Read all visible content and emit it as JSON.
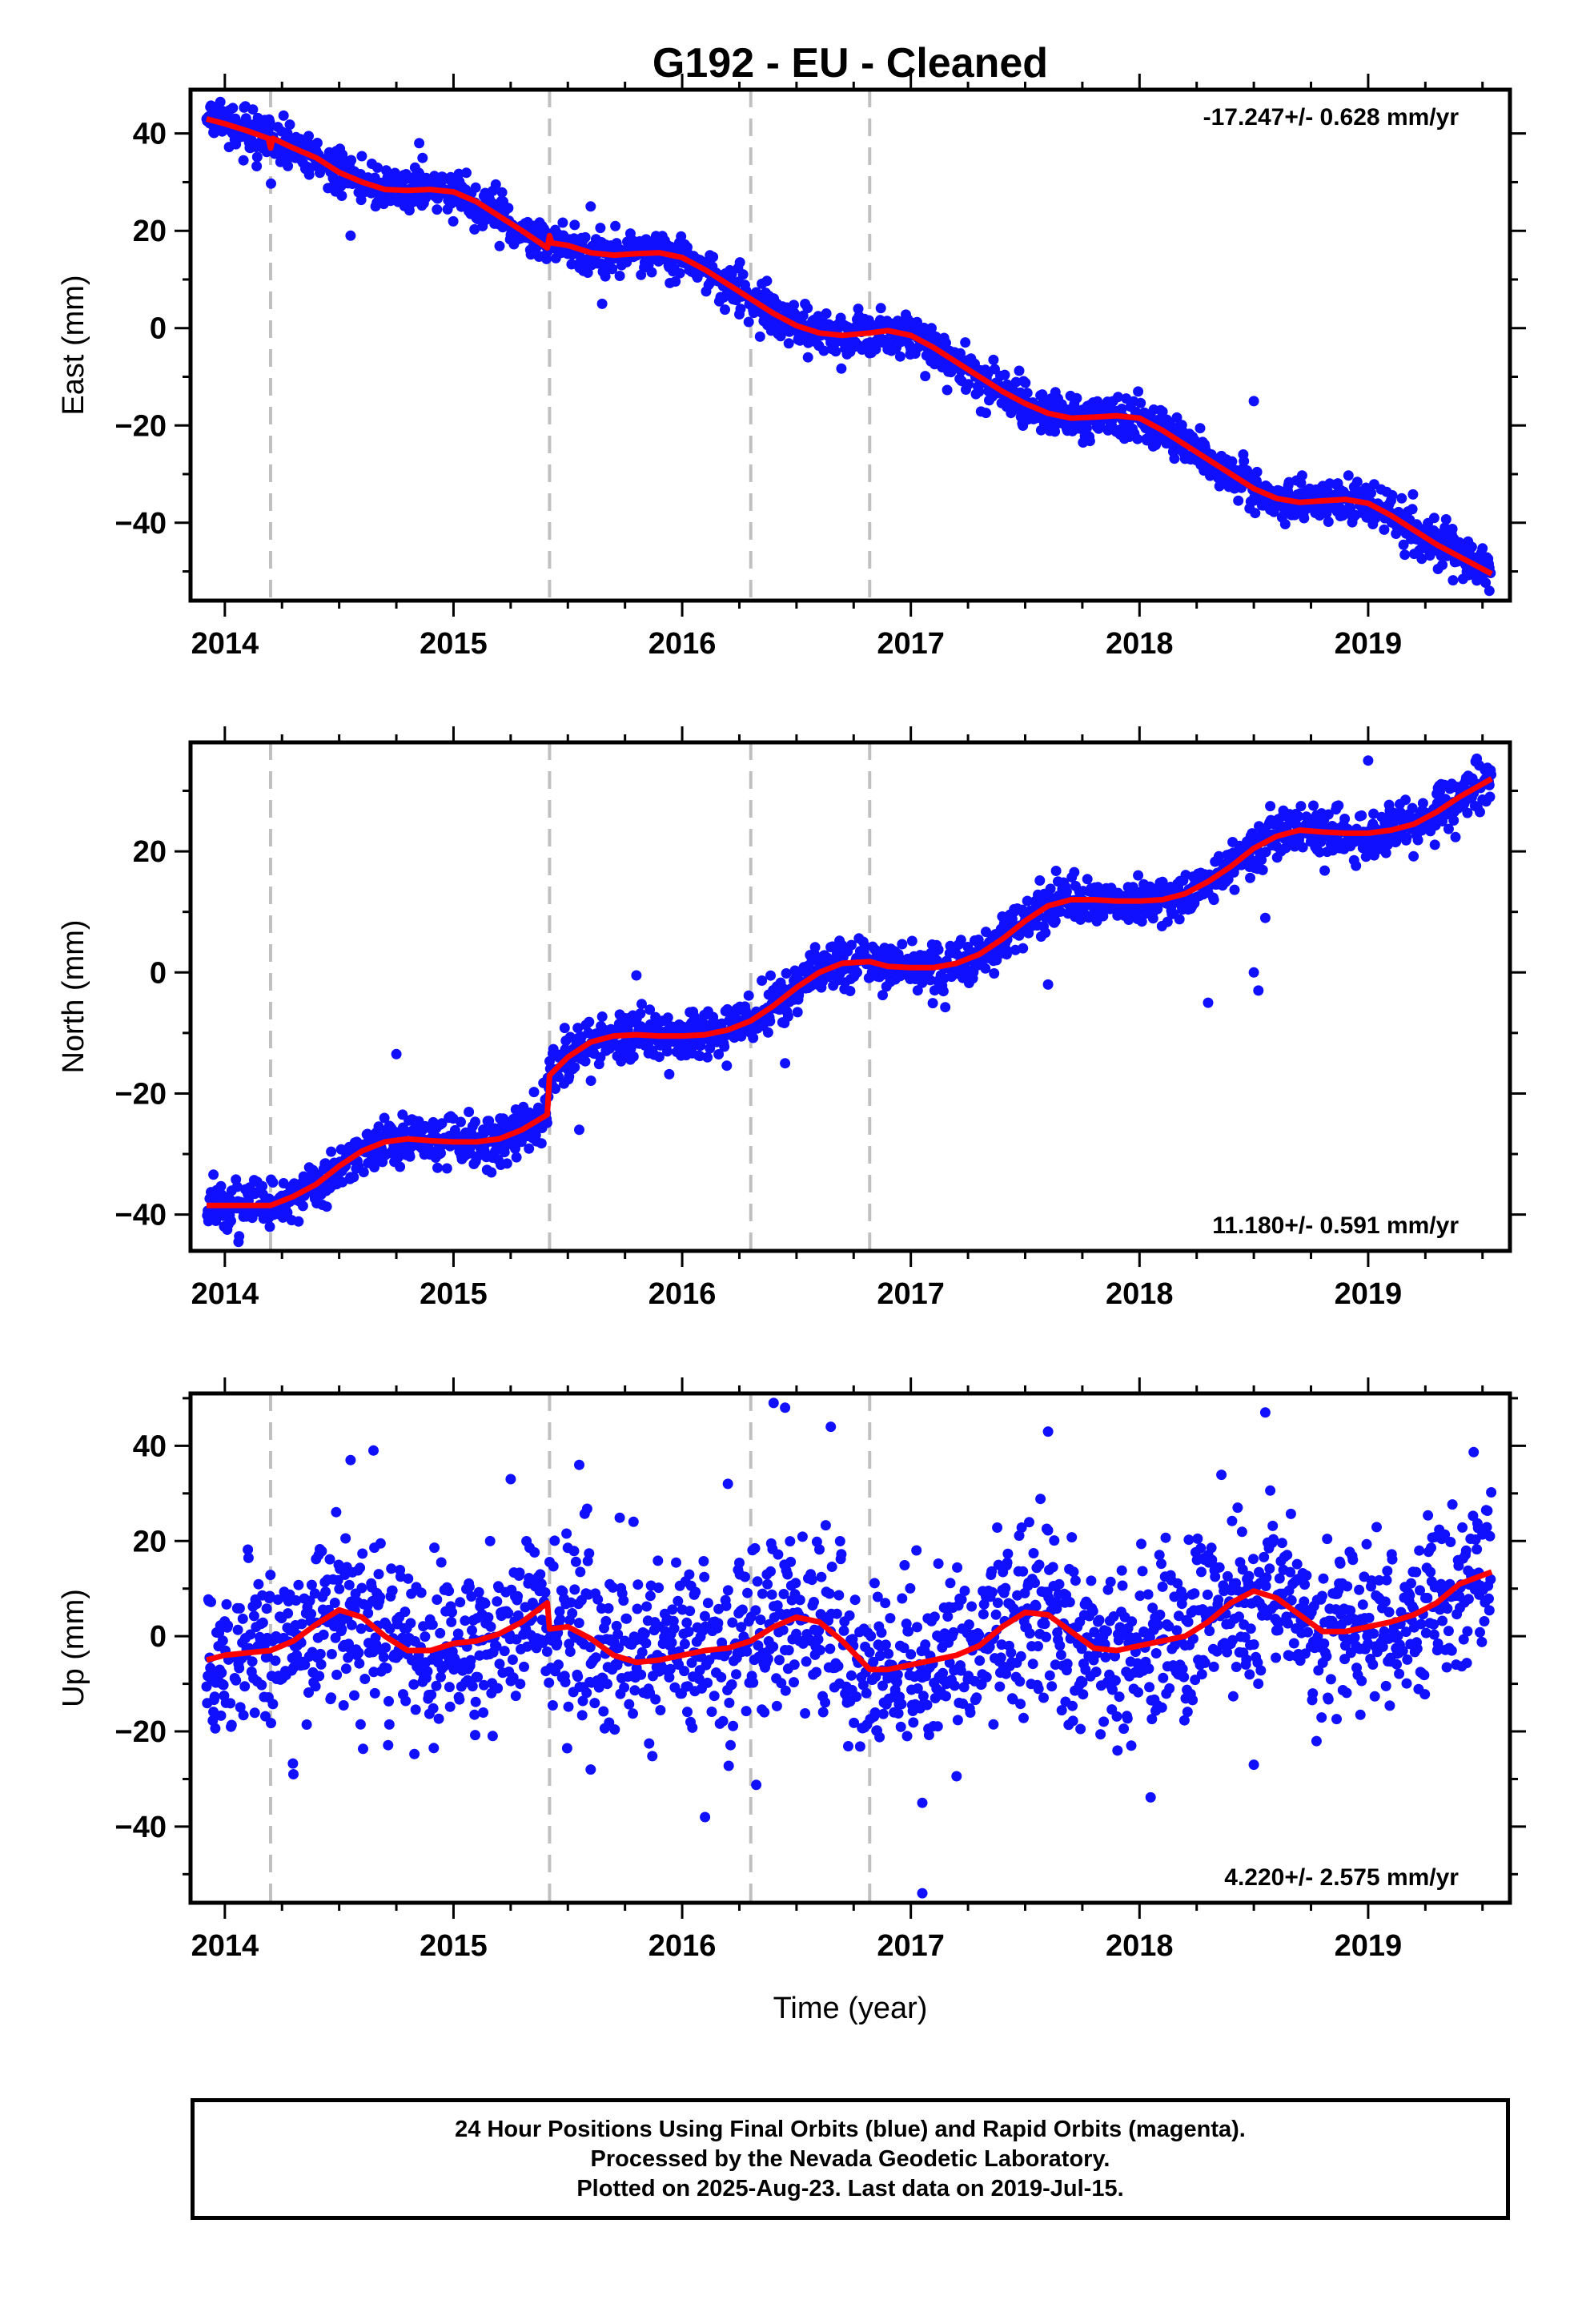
{
  "title": "G192  - EU - Cleaned",
  "xlabel": "Time (year)",
  "footer": {
    "lines": [
      "24 Hour Positions Using Final Orbits (blue) and Rapid Orbits (magenta).",
      "Processed by the Nevada Geodetic Laboratory.",
      "Plotted on 2025-Aug-23. Last data on 2019-Jul-15."
    ]
  },
  "colors": {
    "points": "#1010ff",
    "model": "#ff0000",
    "events": "#c0c0c0",
    "axes": "#000000"
  },
  "chart_data": [
    {
      "type": "scatter",
      "ylabel": "East (mm)",
      "rate": "-17.247+/- 0.628 mm/yr",
      "rate_position": "top-right",
      "xlim": [
        2013.85,
        2019.62
      ],
      "ylim": [
        -56,
        49
      ],
      "xticks": [
        2014,
        2015,
        2016,
        2017,
        2018,
        2019
      ],
      "yticks": [
        -40,
        -20,
        0,
        20,
        40
      ],
      "events": [
        2014.2,
        2015.42,
        2016.3,
        2016.82
      ],
      "model": [
        [
          2013.92,
          43
        ],
        [
          2014.0,
          42
        ],
        [
          2014.1,
          40.5
        ],
        [
          2014.19,
          39
        ],
        [
          2014.2,
          37
        ],
        [
          2014.21,
          39
        ],
        [
          2014.3,
          37
        ],
        [
          2014.4,
          35
        ],
        [
          2014.5,
          32
        ],
        [
          2014.6,
          30
        ],
        [
          2014.7,
          28.5
        ],
        [
          2014.8,
          28.3
        ],
        [
          2014.9,
          28.5
        ],
        [
          2015.0,
          28
        ],
        [
          2015.1,
          26
        ],
        [
          2015.2,
          23
        ],
        [
          2015.3,
          20
        ],
        [
          2015.41,
          16.5
        ],
        [
          2015.42,
          19
        ],
        [
          2015.43,
          17.5
        ],
        [
          2015.5,
          17
        ],
        [
          2015.6,
          15.5
        ],
        [
          2015.7,
          15
        ],
        [
          2015.8,
          15.3
        ],
        [
          2015.9,
          15.5
        ],
        [
          2016.0,
          14.5
        ],
        [
          2016.1,
          12
        ],
        [
          2016.2,
          9
        ],
        [
          2016.3,
          6
        ],
        [
          2016.4,
          3
        ],
        [
          2016.5,
          0.5
        ],
        [
          2016.6,
          -1
        ],
        [
          2016.7,
          -1.5
        ],
        [
          2016.82,
          -1
        ],
        [
          2016.9,
          -0.5
        ],
        [
          2017.0,
          -1.5
        ],
        [
          2017.1,
          -4
        ],
        [
          2017.2,
          -7
        ],
        [
          2017.3,
          -10
        ],
        [
          2017.4,
          -13
        ],
        [
          2017.5,
          -15.5
        ],
        [
          2017.6,
          -17.5
        ],
        [
          2017.7,
          -18.5
        ],
        [
          2017.8,
          -18.3
        ],
        [
          2017.9,
          -18
        ],
        [
          2018.0,
          -18.5
        ],
        [
          2018.1,
          -21
        ],
        [
          2018.2,
          -24
        ],
        [
          2018.3,
          -27
        ],
        [
          2018.4,
          -30
        ],
        [
          2018.5,
          -33
        ],
        [
          2018.6,
          -35
        ],
        [
          2018.7,
          -35.8
        ],
        [
          2018.8,
          -35.5
        ],
        [
          2018.9,
          -35.2
        ],
        [
          2019.0,
          -36
        ],
        [
          2019.1,
          -38.5
        ],
        [
          2019.2,
          -41.5
        ],
        [
          2019.3,
          -44.5
        ],
        [
          2019.4,
          -47
        ],
        [
          2019.54,
          -50.5
        ]
      ],
      "scatter_sigma": 2.2,
      "outliers": [
        [
          2014.55,
          19
        ],
        [
          2014.85,
          38
        ],
        [
          2015.6,
          25
        ],
        [
          2015.65,
          5
        ],
        [
          2016.55,
          -6
        ],
        [
          2018.5,
          -15
        ],
        [
          2019.53,
          -54
        ]
      ]
    },
    {
      "type": "scatter",
      "ylabel": "North (mm)",
      "rate": "11.180+/- 0.591 mm/yr",
      "rate_position": "bottom-right",
      "xlim": [
        2013.85,
        2019.62
      ],
      "ylim": [
        -46,
        38
      ],
      "xticks": [
        2014,
        2015,
        2016,
        2017,
        2018,
        2019
      ],
      "yticks": [
        -40,
        -20,
        0,
        20
      ],
      "events": [
        2014.2,
        2015.42,
        2016.3,
        2016.82
      ],
      "model": [
        [
          2013.92,
          -38.5
        ],
        [
          2014.0,
          -38.5
        ],
        [
          2014.1,
          -38.5
        ],
        [
          2014.2,
          -38.5
        ],
        [
          2014.3,
          -37
        ],
        [
          2014.4,
          -35
        ],
        [
          2014.5,
          -32
        ],
        [
          2014.6,
          -29.5
        ],
        [
          2014.7,
          -28
        ],
        [
          2014.8,
          -27.5
        ],
        [
          2014.9,
          -27.8
        ],
        [
          2015.0,
          -28
        ],
        [
          2015.1,
          -28
        ],
        [
          2015.2,
          -27.5
        ],
        [
          2015.3,
          -26
        ],
        [
          2015.41,
          -23.5
        ],
        [
          2015.42,
          -17
        ],
        [
          2015.5,
          -14
        ],
        [
          2015.6,
          -11.5
        ],
        [
          2015.7,
          -10.5
        ],
        [
          2015.8,
          -10.3
        ],
        [
          2015.9,
          -10.5
        ],
        [
          2016.0,
          -10.5
        ],
        [
          2016.1,
          -10.3
        ],
        [
          2016.2,
          -9.5
        ],
        [
          2016.3,
          -8
        ],
        [
          2016.4,
          -5.5
        ],
        [
          2016.5,
          -2.5
        ],
        [
          2016.6,
          0
        ],
        [
          2016.7,
          1.5
        ],
        [
          2016.82,
          1.8
        ],
        [
          2016.9,
          1
        ],
        [
          2017.0,
          0.8
        ],
        [
          2017.1,
          0.8
        ],
        [
          2017.2,
          1.5
        ],
        [
          2017.3,
          3
        ],
        [
          2017.4,
          5.5
        ],
        [
          2017.5,
          8.5
        ],
        [
          2017.6,
          11
        ],
        [
          2017.7,
          12
        ],
        [
          2017.8,
          12
        ],
        [
          2017.9,
          11.8
        ],
        [
          2018.0,
          11.8
        ],
        [
          2018.1,
          12
        ],
        [
          2018.2,
          13
        ],
        [
          2018.3,
          15
        ],
        [
          2018.4,
          17.5
        ],
        [
          2018.5,
          20.5
        ],
        [
          2018.6,
          22.5
        ],
        [
          2018.7,
          23.5
        ],
        [
          2018.8,
          23.2
        ],
        [
          2018.9,
          23
        ],
        [
          2019.0,
          23
        ],
        [
          2019.1,
          23.5
        ],
        [
          2019.2,
          24.5
        ],
        [
          2019.3,
          26.5
        ],
        [
          2019.4,
          29
        ],
        [
          2019.54,
          32
        ]
      ],
      "scatter_sigma": 2.0,
      "outliers": [
        [
          2014.75,
          -13.5
        ],
        [
          2015.55,
          -26
        ],
        [
          2015.8,
          -0.5
        ],
        [
          2016.45,
          -15
        ],
        [
          2017.6,
          -2
        ],
        [
          2018.3,
          -5
        ],
        [
          2018.5,
          0
        ],
        [
          2018.52,
          -3
        ],
        [
          2018.55,
          9
        ],
        [
          2019.0,
          35
        ]
      ]
    },
    {
      "type": "scatter",
      "ylabel": "Up (mm)",
      "rate": "4.220+/- 2.575 mm/yr",
      "rate_position": "bottom-right",
      "xlim": [
        2013.85,
        2019.62
      ],
      "ylim": [
        -56,
        51
      ],
      "xticks": [
        2014,
        2015,
        2016,
        2017,
        2018,
        2019
      ],
      "yticks": [
        -40,
        -20,
        0,
        20,
        40
      ],
      "events": [
        2014.2,
        2015.42,
        2016.3,
        2016.82
      ],
      "model": [
        [
          2013.92,
          -5
        ],
        [
          2014.0,
          -4
        ],
        [
          2014.1,
          -3.5
        ],
        [
          2014.2,
          -3
        ],
        [
          2014.3,
          -1
        ],
        [
          2014.4,
          2.5
        ],
        [
          2014.5,
          5.5
        ],
        [
          2014.6,
          4
        ],
        [
          2014.7,
          0
        ],
        [
          2014.8,
          -3
        ],
        [
          2014.9,
          -3
        ],
        [
          2015.0,
          -1.5
        ],
        [
          2015.1,
          -1
        ],
        [
          2015.2,
          0.5
        ],
        [
          2015.3,
          3
        ],
        [
          2015.41,
          7
        ],
        [
          2015.42,
          1.5
        ],
        [
          2015.5,
          2
        ],
        [
          2015.6,
          -0.5
        ],
        [
          2015.7,
          -4
        ],
        [
          2015.8,
          -5.5
        ],
        [
          2015.9,
          -5
        ],
        [
          2016.0,
          -4
        ],
        [
          2016.1,
          -3
        ],
        [
          2016.2,
          -2.5
        ],
        [
          2016.3,
          -1
        ],
        [
          2016.4,
          2
        ],
        [
          2016.5,
          4
        ],
        [
          2016.6,
          3
        ],
        [
          2016.7,
          -1
        ],
        [
          2016.82,
          -7
        ],
        [
          2016.9,
          -7
        ],
        [
          2017.0,
          -6
        ],
        [
          2017.1,
          -5
        ],
        [
          2017.2,
          -4
        ],
        [
          2017.3,
          -2
        ],
        [
          2017.4,
          2
        ],
        [
          2017.5,
          5
        ],
        [
          2017.6,
          4.5
        ],
        [
          2017.7,
          1
        ],
        [
          2017.8,
          -2.5
        ],
        [
          2017.9,
          -3
        ],
        [
          2018.0,
          -2
        ],
        [
          2018.1,
          -1
        ],
        [
          2018.2,
          0
        ],
        [
          2018.3,
          3
        ],
        [
          2018.4,
          7
        ],
        [
          2018.5,
          9.5
        ],
        [
          2018.6,
          8
        ],
        [
          2018.7,
          4.5
        ],
        [
          2018.8,
          1
        ],
        [
          2018.9,
          1
        ],
        [
          2019.0,
          2
        ],
        [
          2019.1,
          3
        ],
        [
          2019.2,
          4.5
        ],
        [
          2019.3,
          7
        ],
        [
          2019.4,
          11
        ],
        [
          2019.54,
          13.5
        ]
      ],
      "scatter_sigma": 9.0,
      "outliers": [
        [
          2014.55,
          37
        ],
        [
          2014.65,
          39
        ],
        [
          2015.25,
          33
        ],
        [
          2015.55,
          36
        ],
        [
          2016.2,
          32
        ],
        [
          2016.4,
          49
        ],
        [
          2016.45,
          48
        ],
        [
          2016.65,
          44
        ],
        [
          2016.1,
          -38
        ],
        [
          2017.05,
          -35
        ],
        [
          2017.05,
          -54
        ],
        [
          2017.6,
          43
        ],
        [
          2018.55,
          47
        ],
        [
          2018.5,
          -27
        ],
        [
          2015.6,
          -28
        ],
        [
          2014.3,
          -29
        ]
      ]
    }
  ]
}
